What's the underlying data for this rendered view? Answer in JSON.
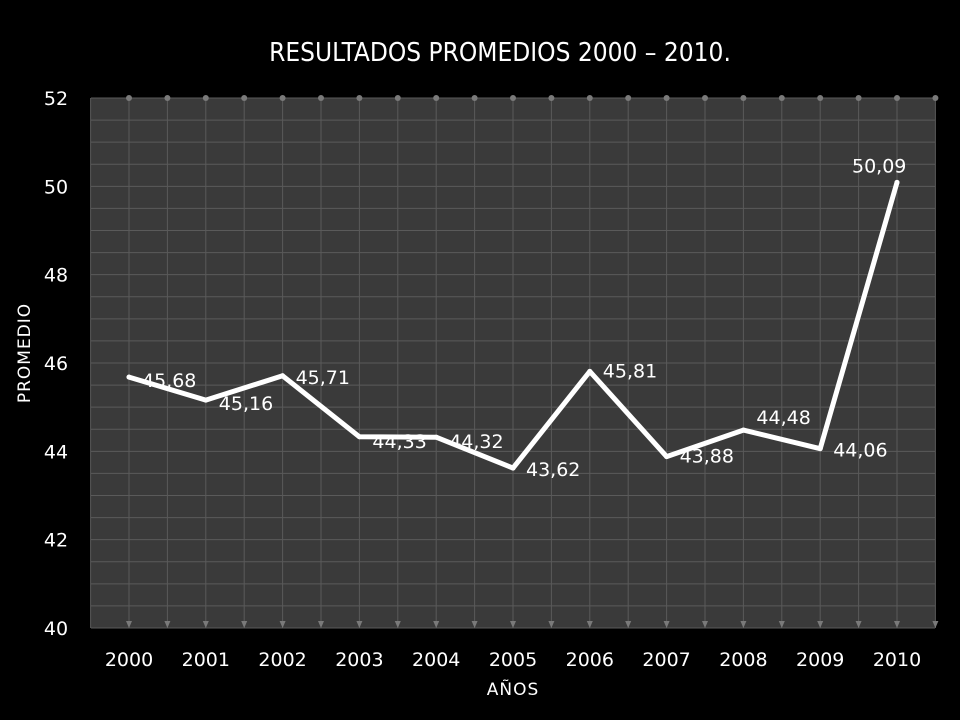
{
  "chart_data": {
    "type": "line",
    "title": "RESULTADOS PROMEDIOS 2000 – 2010.",
    "xlabel": "AÑOS",
    "ylabel": "PROMEDIO",
    "categories": [
      "2000",
      "2001",
      "2002",
      "2003",
      "2004",
      "2005",
      "2006",
      "2007",
      "2008",
      "2009",
      "2010"
    ],
    "series": [
      {
        "values": [
          45.68,
          45.16,
          45.71,
          44.33,
          44.32,
          43.62,
          45.81,
          43.88,
          44.48,
          44.06,
          50.09
        ],
        "labels": [
          "45,68",
          "45,16",
          "45,71",
          "44,33",
          "44,32",
          "43,62",
          "45,81",
          "43,88",
          "44,48",
          "44,06",
          "50,09"
        ]
      }
    ],
    "ylim": [
      40,
      52
    ],
    "yticks": [
      "40",
      "42",
      "44",
      "46",
      "48",
      "50",
      "52"
    ],
    "grid": true,
    "legend": "none",
    "colors": {
      "background": "#000000",
      "plot_area": "#3a3a3a",
      "grid": "#5a5a5a",
      "line": "#ffffff"
    }
  }
}
